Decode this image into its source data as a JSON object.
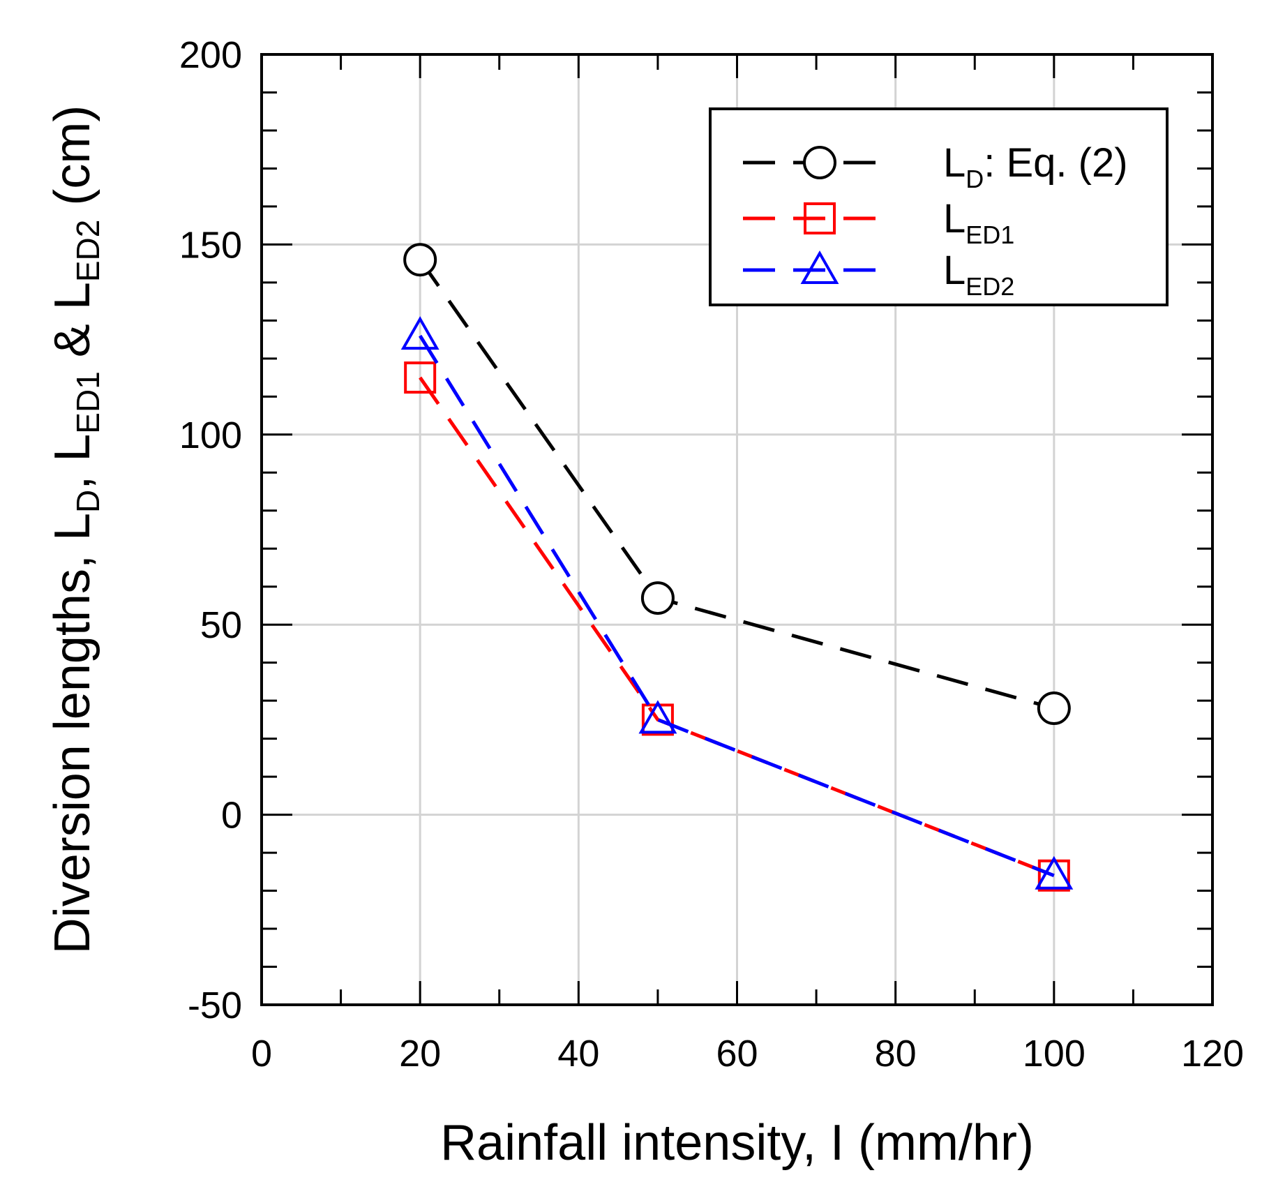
{
  "chart_data": {
    "type": "line",
    "xlabel": "Rainfall intensity, I (mm/hr)",
    "ylabel_parts": [
      {
        "text": "Diversion lengths, L",
        "sub": false
      },
      {
        "text": "D",
        "sub": true
      },
      {
        "text": ", L",
        "sub": false
      },
      {
        "text": "ED1",
        "sub": true
      },
      {
        "text": " & L",
        "sub": false
      },
      {
        "text": "ED2",
        "sub": true
      },
      {
        "text": " (cm)",
        "sub": false
      }
    ],
    "xlim": [
      0,
      120
    ],
    "ylim": [
      -50,
      200
    ],
    "x_ticks": [
      0,
      20,
      40,
      60,
      80,
      100,
      120
    ],
    "x_tick_labels": [
      "0",
      "20",
      "40",
      "60",
      "80",
      "100",
      "120"
    ],
    "y_ticks": [
      -50,
      0,
      50,
      100,
      150,
      200
    ],
    "y_tick_labels": [
      "-50",
      "0",
      "50",
      "100",
      "150",
      "200"
    ],
    "x_minor_step": 10,
    "y_minor_step": 10,
    "grid": true,
    "legend_position": "top-right",
    "series": [
      {
        "name": "L_D: Eq. (2)",
        "label_main": "L",
        "label_sub": "D",
        "label_suffix": ": Eq. (2)",
        "color": "#000000",
        "marker": "circle",
        "x": [
          20,
          50,
          100
        ],
        "y": [
          146,
          57,
          28
        ]
      },
      {
        "name": "L_ED1",
        "label_main": "L",
        "label_sub": "ED1",
        "label_suffix": "",
        "color": "#ff0000",
        "marker": "square",
        "x": [
          20,
          50,
          100
        ],
        "y": [
          115,
          25,
          -16
        ]
      },
      {
        "name": "L_ED2",
        "label_main": "L",
        "label_sub": "ED2",
        "label_suffix": "",
        "color": "#0000ff",
        "marker": "triangle",
        "x": [
          20,
          50,
          100
        ],
        "y": [
          126,
          25,
          -16
        ]
      }
    ]
  }
}
